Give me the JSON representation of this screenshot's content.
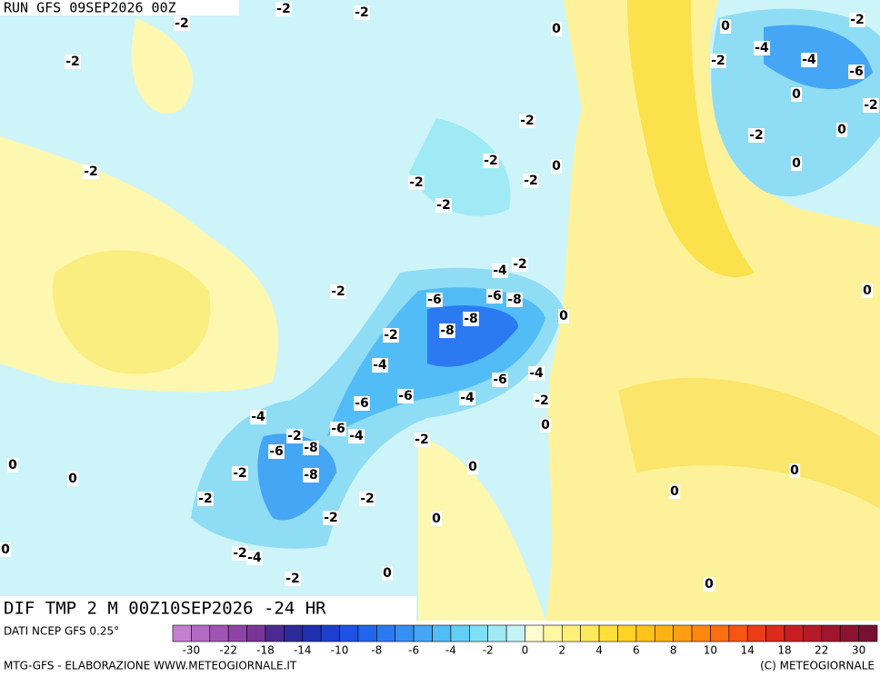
{
  "header": {
    "run": "RUN GFS 09SEP2026 00Z",
    "field": "DIF TMP 2 M 00Z10SEP2026 -24 HR"
  },
  "map": {
    "contour_labels": [
      -2,
      -2,
      -2,
      0,
      0,
      -2,
      -2,
      -4,
      -4,
      -2,
      -6,
      0,
      -2,
      -2,
      -2,
      0,
      -2,
      -2,
      0,
      0,
      -2,
      -2,
      -2,
      -4,
      -2,
      -2,
      -6,
      -6,
      -8,
      0,
      -8,
      -8,
      0,
      -2,
      -4,
      -4,
      -6,
      -6,
      -6,
      -4,
      -2,
      -4,
      -6,
      -4,
      -2,
      0,
      -6,
      -8,
      -2,
      0,
      0,
      -2,
      -8,
      0,
      0,
      -2,
      -2,
      0,
      -2,
      0,
      0,
      -2,
      -4,
      0,
      -2,
      0
    ]
  },
  "legend": {
    "source": "DATI NCEP GFS 0.25°",
    "colors": [
      "#c47fd1",
      "#b36bc4",
      "#a055b5",
      "#8e44a6",
      "#7a3598",
      "#4b2b92",
      "#2e2a9a",
      "#1f2fb0",
      "#1d3fd0",
      "#1e52e6",
      "#2266f0",
      "#2b7af2",
      "#3690f2",
      "#44a6f4",
      "#52bcf6",
      "#63cff6",
      "#7de0f4",
      "#9feaf4",
      "#c4f3f6",
      "#fffbd0",
      "#fff6a2",
      "#fff07a",
      "#ffe95a",
      "#ffe03a",
      "#ffd224",
      "#ffc31a",
      "#ffb214",
      "#ff9e10",
      "#ff870e",
      "#ff6e10",
      "#f85414",
      "#ec3c18",
      "#dc2a1c",
      "#c81e22",
      "#b41a28",
      "#a0162c",
      "#8c1430",
      "#781034"
    ],
    "ticks": [
      -30,
      -22,
      -18,
      -14,
      -10,
      -8,
      -6,
      -4,
      -2,
      0,
      2,
      4,
      6,
      8,
      10,
      14,
      18,
      22,
      30
    ]
  },
  "footer": {
    "left": "MTG-GFS - ELABORAZIONE WWW.METEOGIORNALE.IT",
    "right": "(C) METEOGIORNALE"
  }
}
